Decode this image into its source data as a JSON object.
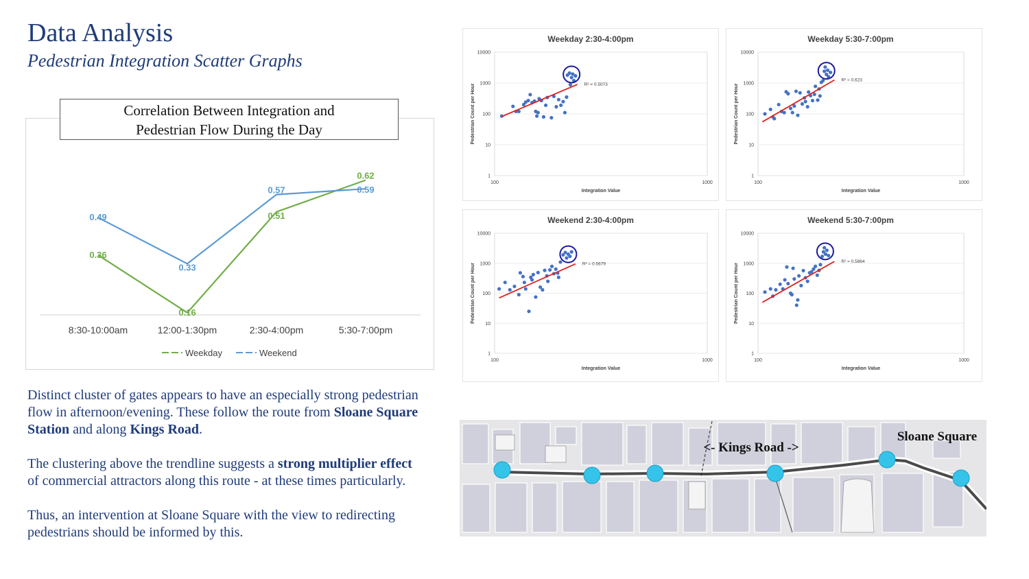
{
  "header": {
    "title": "Data Analysis",
    "subtitle": "Pedestrian Integration Scatter Graphs"
  },
  "main_chart": {
    "title_line1": "Correlation Between Integration and",
    "title_line2": "Pedestrian Flow During the Day"
  },
  "body": {
    "p1_a": "Distinct cluster of gates appears to have an especially strong pedestrian flow in afternoon/evening. These follow the route from ",
    "p1_b": "Sloane Square Station",
    "p1_c": " and along ",
    "p1_d": "Kings Road",
    "p1_e": ".",
    "p2_a": "The clustering above the trendline suggests a ",
    "p2_b": "strong multiplier effect",
    "p2_c": " of commercial attractors along this route - at these times particularly.",
    "p3": "Thus, an intervention at Sloane Square with the view to redirecting pedestrians should be informed by this."
  },
  "map": {
    "kings_road_label": "<- Kings Road ->",
    "sloane_label": "Sloane Square"
  },
  "colors": {
    "weekday": "#70ad47",
    "weekend": "#5b9bd5",
    "scatter_point": "#4472c4",
    "trendline": "#e0201b",
    "cluster_ring": "#1a1aa0",
    "node": "#35c3ea"
  },
  "chart_data": [
    {
      "type": "line",
      "title": "Correlation Between Integration and Pedestrian Flow During the Day",
      "categories": [
        "8:30-10:00am",
        "12:00-1:30pm",
        "2:30-4:00pm",
        "5:30-7:00pm"
      ],
      "series": [
        {
          "name": "Weekday",
          "values": [
            0.36,
            0.16,
            0.51,
            0.62
          ]
        },
        {
          "name": "Weekend",
          "values": [
            0.49,
            0.33,
            0.57,
            0.59
          ]
        }
      ],
      "legend": "bottom",
      "grid": false
    },
    {
      "type": "scatter",
      "title": "Weekday 2:30-4:00pm",
      "xlabel": "Integration Value",
      "ylabel": "Pedestrian Count per Hour",
      "xscale": "log",
      "yscale": "log",
      "xticks": [
        "100",
        "1000"
      ],
      "yticks": [
        "1",
        "10",
        "100",
        "1000",
        "10000"
      ],
      "r2_label": "R² = 0.5073",
      "points": [
        [
          108,
          85
        ],
        [
          122,
          175
        ],
        [
          126,
          120
        ],
        [
          130,
          120
        ],
        [
          137,
          200
        ],
        [
          140,
          240
        ],
        [
          144,
          270
        ],
        [
          147,
          420
        ],
        [
          150,
          230
        ],
        [
          154,
          260
        ],
        [
          156,
          120
        ],
        [
          158,
          85
        ],
        [
          160,
          110
        ],
        [
          162,
          310
        ],
        [
          166,
          270
        ],
        [
          170,
          80
        ],
        [
          174,
          190
        ],
        [
          177,
          340
        ],
        [
          185,
          75
        ],
        [
          190,
          370
        ],
        [
          195,
          170
        ],
        [
          200,
          290
        ],
        [
          205,
          190
        ],
        [
          210,
          250
        ],
        [
          214,
          110
        ],
        [
          218,
          350
        ],
        [
          220,
          1800
        ],
        [
          225,
          2100
        ],
        [
          227,
          880
        ],
        [
          230,
          1500
        ],
        [
          233,
          1950
        ],
        [
          236,
          1200
        ],
        [
          240,
          1700
        ]
      ],
      "trend": [
        [
          108,
          82
        ],
        [
          245,
          900
        ]
      ],
      "cluster": [
        230,
        1900
      ]
    },
    {
      "type": "scatter",
      "title": "Weekday 5:30-7:00pm",
      "xlabel": "Integration Value",
      "ylabel": "Pedestrian Count per Hour",
      "xscale": "log",
      "yscale": "log",
      "xticks": [
        "100",
        "1000"
      ],
      "yticks": [
        "1",
        "10",
        "100",
        "1000",
        "10000"
      ],
      "r2_label": "R² = 0.623",
      "points": [
        [
          108,
          100
        ],
        [
          115,
          140
        ],
        [
          118,
          80
        ],
        [
          120,
          70
        ],
        [
          126,
          200
        ],
        [
          130,
          120
        ],
        [
          134,
          110
        ],
        [
          137,
          520
        ],
        [
          140,
          450
        ],
        [
          144,
          150
        ],
        [
          147,
          110
        ],
        [
          150,
          180
        ],
        [
          153,
          540
        ],
        [
          156,
          90
        ],
        [
          160,
          480
        ],
        [
          164,
          210
        ],
        [
          168,
          330
        ],
        [
          170,
          250
        ],
        [
          174,
          170
        ],
        [
          176,
          510
        ],
        [
          180,
          390
        ],
        [
          184,
          270
        ],
        [
          188,
          430
        ],
        [
          190,
          780
        ],
        [
          195,
          280
        ],
        [
          198,
          640
        ],
        [
          200,
          380
        ],
        [
          203,
          1050
        ],
        [
          207,
          1200
        ],
        [
          210,
          2400
        ],
        [
          212,
          3300
        ],
        [
          215,
          1900
        ],
        [
          218,
          2600
        ],
        [
          220,
          1600
        ],
        [
          225,
          2200
        ]
      ],
      "trend": [
        [
          105,
          55
        ],
        [
          235,
          1250
        ]
      ],
      "cluster": [
        215,
        2500
      ]
    },
    {
      "type": "scatter",
      "title": "Weekend 2:30-4:00pm",
      "xlabel": "Integration Value",
      "ylabel": "Pedestrian Count per Hour",
      "xscale": "log",
      "yscale": "log",
      "xticks": [
        "100",
        "1000"
      ],
      "yticks": [
        "1",
        "10",
        "100",
        "1000",
        "10000"
      ],
      "r2_label": "R² = 0.5679",
      "points": [
        [
          105,
          140
        ],
        [
          112,
          230
        ],
        [
          118,
          130
        ],
        [
          124,
          170
        ],
        [
          130,
          90
        ],
        [
          132,
          480
        ],
        [
          136,
          360
        ],
        [
          138,
          230
        ],
        [
          140,
          140
        ],
        [
          145,
          25
        ],
        [
          148,
          340
        ],
        [
          150,
          280
        ],
        [
          152,
          420
        ],
        [
          156,
          75
        ],
        [
          160,
          490
        ],
        [
          164,
          160
        ],
        [
          168,
          130
        ],
        [
          172,
          580
        ],
        [
          176,
          380
        ],
        [
          178,
          250
        ],
        [
          182,
          600
        ],
        [
          186,
          790
        ],
        [
          190,
          450
        ],
        [
          194,
          640
        ],
        [
          198,
          470
        ],
        [
          200,
          340
        ],
        [
          204,
          1100
        ],
        [
          210,
          1900
        ],
        [
          215,
          2300
        ],
        [
          218,
          1500
        ],
        [
          222,
          2000
        ],
        [
          226,
          1700
        ],
        [
          230,
          2400
        ]
      ],
      "trend": [
        [
          105,
          70
        ],
        [
          240,
          950
        ]
      ],
      "cluster": [
        222,
        2000
      ]
    },
    {
      "type": "scatter",
      "title": "Weekend 5:30-7:00pm",
      "xlabel": "Integration Value",
      "ylabel": "Pedestrian Count per Hour",
      "xscale": "log",
      "yscale": "log",
      "xticks": [
        "100",
        "1000"
      ],
      "yticks": [
        "1",
        "10",
        "100",
        "1000",
        "10000"
      ],
      "r2_label": "R² = 0.5864",
      "points": [
        [
          108,
          110
        ],
        [
          115,
          140
        ],
        [
          118,
          80
        ],
        [
          122,
          130
        ],
        [
          128,
          200
        ],
        [
          132,
          140
        ],
        [
          135,
          280
        ],
        [
          138,
          750
        ],
        [
          140,
          210
        ],
        [
          144,
          100
        ],
        [
          146,
          90
        ],
        [
          148,
          680
        ],
        [
          150,
          300
        ],
        [
          154,
          40
        ],
        [
          156,
          60
        ],
        [
          158,
          380
        ],
        [
          162,
          180
        ],
        [
          166,
          570
        ],
        [
          170,
          330
        ],
        [
          174,
          250
        ],
        [
          178,
          480
        ],
        [
          182,
          520
        ],
        [
          186,
          640
        ],
        [
          190,
          790
        ],
        [
          194,
          400
        ],
        [
          198,
          580
        ],
        [
          201,
          900
        ],
        [
          205,
          1700
        ],
        [
          208,
          2400
        ],
        [
          210,
          3300
        ],
        [
          213,
          2000
        ],
        [
          216,
          2700
        ],
        [
          220,
          1800
        ]
      ],
      "trend": [
        [
          105,
          50
        ],
        [
          235,
          1150
        ]
      ],
      "cluster": [
        212,
        2500
      ]
    }
  ]
}
